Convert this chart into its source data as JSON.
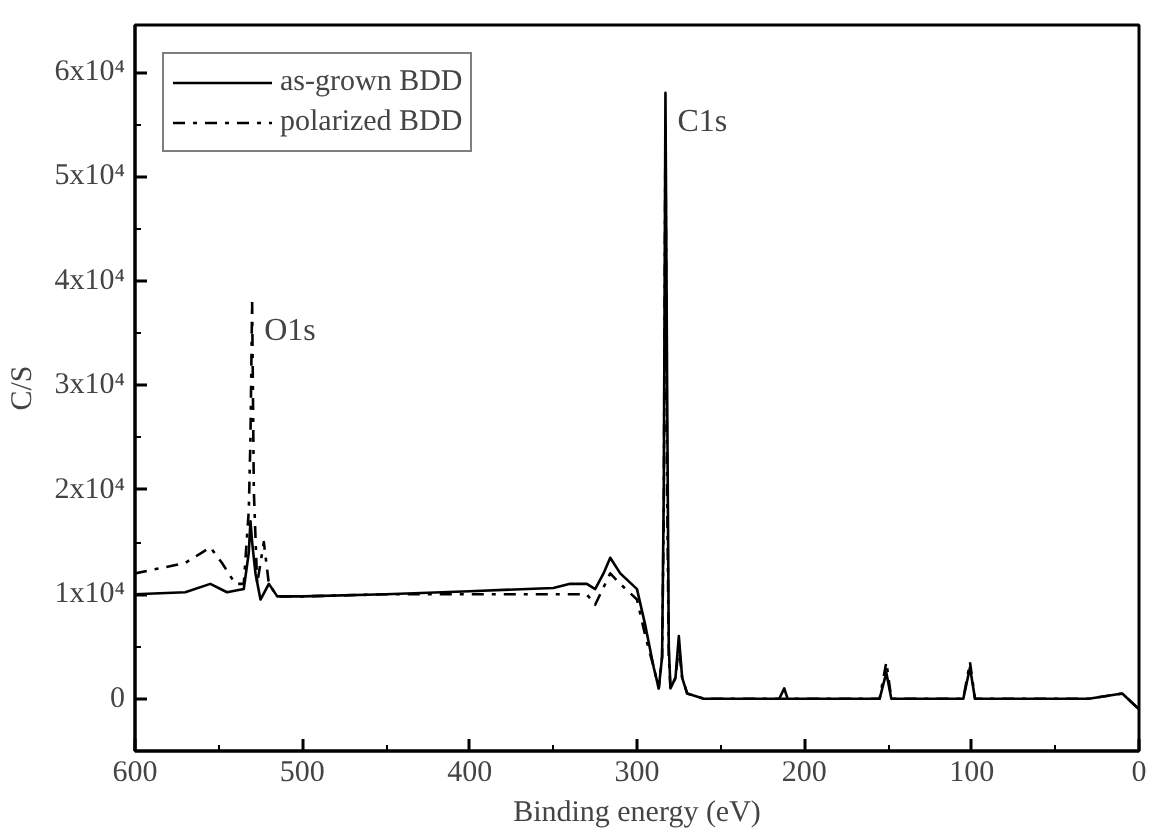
{
  "chart_data": {
    "type": "line",
    "xlabel": "Binding energy (eV)",
    "ylabel": "C/S",
    "xlim": [
      600,
      0
    ],
    "ylim": [
      -5000,
      64500
    ],
    "xticks": [
      600,
      500,
      400,
      300,
      200,
      100,
      0
    ],
    "yticks": [
      0,
      {
        "value": 10000,
        "label": "1x10⁴"
      },
      {
        "value": 20000,
        "label": "2x10⁴"
      },
      {
        "value": 30000,
        "label": "3x10⁴"
      },
      {
        "value": 40000,
        "label": "4x10⁴"
      },
      {
        "value": 50000,
        "label": "5x10⁴"
      },
      {
        "value": 60000,
        "label": "6x10⁴"
      }
    ],
    "grid": false,
    "legend": "top left",
    "annotations": [
      {
        "text": "O1s",
        "x": 530,
        "y": 38000
      },
      {
        "text": "C1s",
        "x": 283,
        "y": 58000
      }
    ],
    "series": [
      {
        "name": "as-grown BDD",
        "color": "#000000",
        "line_style": "solid",
        "x": [
          600,
          570,
          555,
          545,
          535,
          532,
          531,
          530,
          528,
          525,
          520,
          515,
          500,
          450,
          400,
          350,
          340,
          330,
          325,
          320,
          316,
          310,
          300,
          295,
          290,
          287,
          285,
          284,
          283,
          282,
          281,
          280,
          277,
          275,
          273,
          270,
          260,
          215,
          212,
          210,
          155,
          151,
          148,
          105,
          101,
          98,
          30,
          10,
          0
        ],
        "values": [
          10000,
          10200,
          11000,
          10200,
          10500,
          14000,
          17000,
          15000,
          12000,
          9500,
          11000,
          9800,
          9800,
          10000,
          10300,
          10600,
          11000,
          11000,
          10500,
          12000,
          13500,
          12000,
          10500,
          7000,
          3000,
          1000,
          4000,
          20000,
          58000,
          30000,
          5000,
          1000,
          2000,
          6000,
          2000,
          500,
          0,
          0,
          1000,
          0,
          0,
          2500,
          0,
          0,
          3000,
          0,
          0,
          500,
          -1000
        ]
      },
      {
        "name": "polarized BDD",
        "color": "#000000",
        "line_style": "dashdot",
        "x": [
          600,
          570,
          560,
          555,
          548,
          540,
          535,
          532,
          531,
          530,
          529,
          527,
          523,
          520,
          515,
          500,
          450,
          400,
          350,
          330,
          325,
          316,
          310,
          300,
          295,
          290,
          287,
          285,
          284,
          283,
          282,
          281,
          280,
          277,
          275,
          273,
          270,
          260,
          215,
          155,
          151,
          148,
          105,
          101,
          98,
          30,
          10,
          0
        ],
        "values": [
          12000,
          13000,
          14000,
          14500,
          13000,
          11000,
          11000,
          18000,
          25000,
          38000,
          20000,
          11000,
          15000,
          11000,
          9800,
          9800,
          10000,
          10000,
          10000,
          10000,
          9000,
          12000,
          11000,
          9500,
          6000,
          3000,
          1000,
          4000,
          18000,
          55000,
          20000,
          4000,
          1000,
          2000,
          5000,
          2000,
          500,
          0,
          0,
          0,
          3500,
          0,
          0,
          3500,
          0,
          0,
          500,
          -1000
        ]
      }
    ]
  }
}
